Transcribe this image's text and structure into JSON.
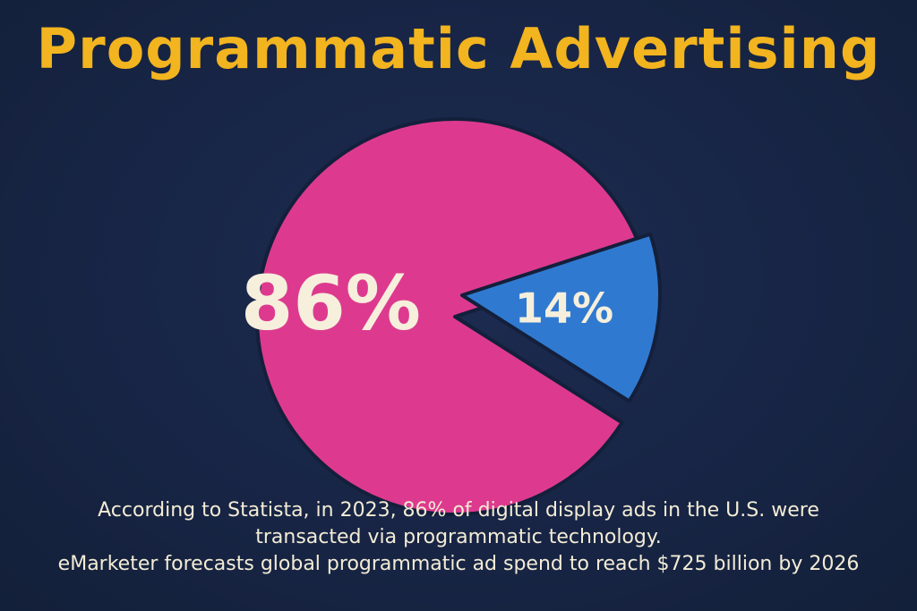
{
  "title": "Programmatic Advertising",
  "chart_data": {
    "type": "pie",
    "title": "Programmatic Advertising",
    "slices": [
      {
        "label": "86%",
        "value": 86,
        "color": "#dd3a8f"
      },
      {
        "label": "14%",
        "value": 14,
        "color": "#2f7ad0"
      }
    ],
    "legend": "none"
  },
  "caption": {
    "line1": "According to Statista, in 2023, 86% of digital display ads in the U.S. were",
    "line2": "transacted via programmatic technology.",
    "line3": "eMarketer forecasts global programmatic ad spend to reach $725 billion by 2026"
  },
  "colors": {
    "background": "#172444",
    "title": "#f2b41f",
    "text": "#f3ecd6"
  }
}
